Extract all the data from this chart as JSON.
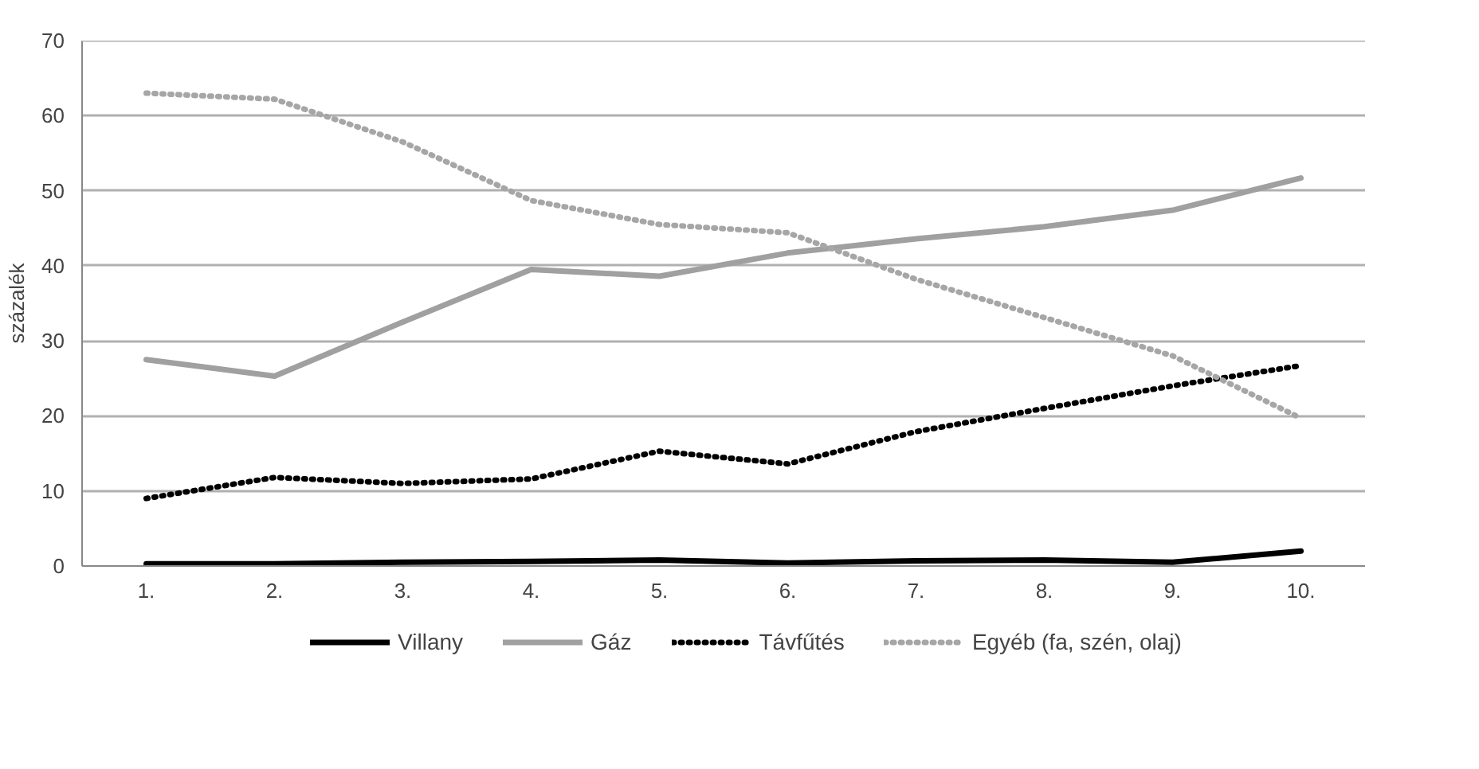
{
  "chart_data": {
    "type": "line",
    "ylabel": "százalék",
    "categories": [
      "1.",
      "2.",
      "3.",
      "4.",
      "5.",
      "6.",
      "7.",
      "8.",
      "9.",
      "10."
    ],
    "ylim": [
      0,
      70
    ],
    "yticks": [
      0,
      10,
      20,
      30,
      40,
      50,
      60,
      70
    ],
    "grid": "y",
    "legend": "bottom",
    "series": [
      {
        "name": "Villany",
        "color": "#000000",
        "line_style": "solid",
        "values": [
          0.3,
          0.3,
          0.5,
          0.6,
          0.8,
          0.4,
          0.7,
          0.8,
          0.5,
          2.0
        ]
      },
      {
        "name": "Gáz",
        "color": "#a0a0a0",
        "line_style": "solid",
        "values": [
          27.5,
          25.3,
          32.5,
          39.5,
          38.6,
          41.7,
          43.6,
          45.2,
          47.4,
          51.7
        ]
      },
      {
        "name": "Távfűtés",
        "color": "#000000",
        "line_style": "dotted",
        "values": [
          9,
          11.8,
          11,
          11.6,
          15.3,
          13.6,
          17.9,
          21,
          24,
          26.7
        ]
      },
      {
        "name": "Egyéb (fa, szén, olaj)",
        "color": "#a6a6a6",
        "line_style": "dotted",
        "values": [
          63,
          62.2,
          56.5,
          48.7,
          45.5,
          44.4,
          38.2,
          33.1,
          28,
          19.7
        ]
      }
    ]
  }
}
